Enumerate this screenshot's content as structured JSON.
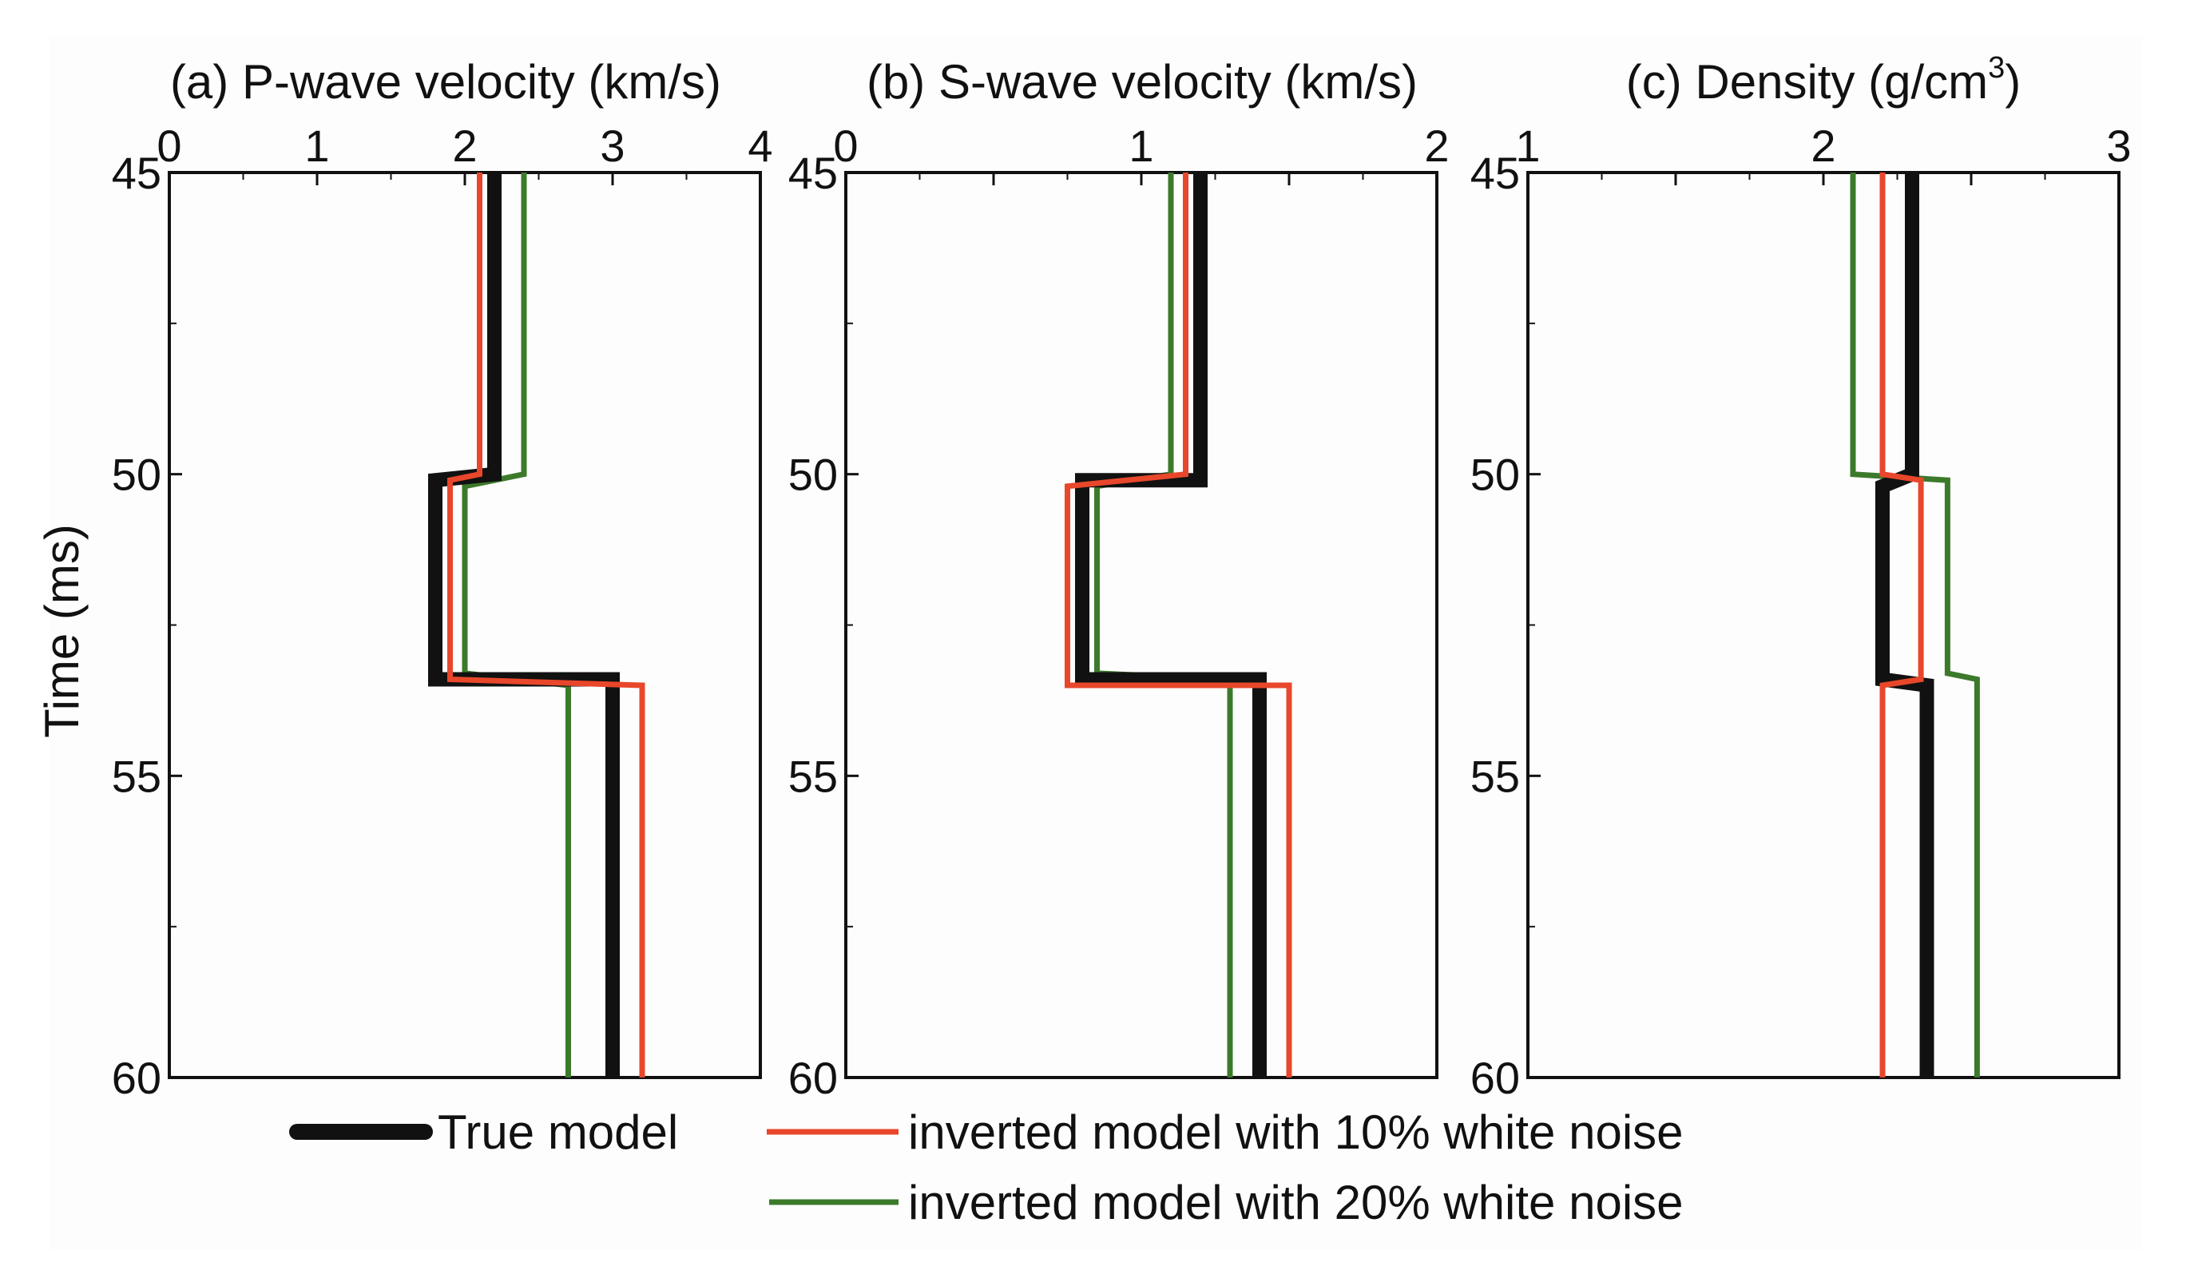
{
  "colors": {
    "true_model": "#111111",
    "noise10": "#e8472b",
    "noise20": "#3c7a2b",
    "background": "#fdfdfd"
  },
  "chart_data": [
    {
      "type": "line",
      "title_prefix": "(a) P-wave velocity (km/s)",
      "title_sup": "",
      "title_suffix": "",
      "ylabel": "Time (ms)",
      "xlim": [
        0,
        4
      ],
      "ylim": [
        45,
        60
      ],
      "x_ticks": [
        "0",
        "1",
        "2",
        "3",
        "4"
      ],
      "y_ticks": [
        "45",
        "50",
        "55",
        "60"
      ],
      "series": [
        {
          "name": "True model",
          "key": "true_model",
          "points": [
            [
              2.2,
              45
            ],
            [
              2.2,
              50
            ],
            [
              1.8,
              50.1
            ],
            [
              1.8,
              53.4
            ],
            [
              3.0,
              53.4
            ],
            [
              3.0,
              60
            ]
          ]
        },
        {
          "name": "inverted model with 10% white noise",
          "key": "noise10",
          "points": [
            [
              2.1,
              45
            ],
            [
              2.1,
              50
            ],
            [
              1.9,
              50.1
            ],
            [
              1.9,
              53.4
            ],
            [
              3.2,
              53.5
            ],
            [
              3.2,
              60
            ]
          ]
        },
        {
          "name": "inverted model with 20% white noise",
          "key": "noise20",
          "points": [
            [
              2.4,
              45
            ],
            [
              2.4,
              50
            ],
            [
              2.0,
              50.2
            ],
            [
              2.0,
              53.3
            ],
            [
              2.7,
              53.5
            ],
            [
              2.7,
              60
            ]
          ]
        }
      ]
    },
    {
      "type": "line",
      "title_prefix": "(b) S-wave velocity (km/s)",
      "title_sup": "",
      "title_suffix": "",
      "ylabel": "",
      "xlim": [
        0,
        2
      ],
      "ylim": [
        45,
        60
      ],
      "x_ticks": [
        "0",
        "",
        "1",
        "",
        "2"
      ],
      "y_ticks": [
        "45",
        "50",
        "55",
        "60"
      ],
      "series": [
        {
          "name": "True model",
          "key": "true_model",
          "points": [
            [
              1.2,
              45
            ],
            [
              1.2,
              50.1
            ],
            [
              0.8,
              50.1
            ],
            [
              0.8,
              53.4
            ],
            [
              1.4,
              53.4
            ],
            [
              1.4,
              60
            ]
          ]
        },
        {
          "name": "inverted model with 10% white noise",
          "key": "noise10",
          "points": [
            [
              1.15,
              45
            ],
            [
              1.15,
              50
            ],
            [
              0.75,
              50.2
            ],
            [
              0.75,
              53.5
            ],
            [
              1.5,
              53.5
            ],
            [
              1.5,
              60
            ]
          ]
        },
        {
          "name": "inverted model with 20% white noise",
          "key": "noise20",
          "points": [
            [
              1.1,
              45
            ],
            [
              1.1,
              50
            ],
            [
              0.85,
              50.2
            ],
            [
              0.85,
              53.3
            ],
            [
              1.3,
              53.4
            ],
            [
              1.3,
              60
            ]
          ]
        }
      ]
    },
    {
      "type": "line",
      "title_prefix": "(c) Density (g/cm",
      "title_sup": "3",
      "title_suffix": ")",
      "ylabel": "",
      "xlim": [
        1,
        3
      ],
      "ylim": [
        45,
        60
      ],
      "x_ticks": [
        "1",
        "",
        "2",
        "",
        "3"
      ],
      "y_ticks": [
        "45",
        "50",
        "55",
        "60"
      ],
      "series": [
        {
          "name": "True model",
          "key": "true_model",
          "points": [
            [
              2.3,
              45
            ],
            [
              2.3,
              50
            ],
            [
              2.2,
              50.2
            ],
            [
              2.2,
              53.4
            ],
            [
              2.35,
              53.5
            ],
            [
              2.35,
              60
            ]
          ]
        },
        {
          "name": "inverted model with 10% white noise",
          "key": "noise10",
          "points": [
            [
              2.2,
              45
            ],
            [
              2.2,
              50
            ],
            [
              2.33,
              50.1
            ],
            [
              2.33,
              53.4
            ],
            [
              2.2,
              53.5
            ],
            [
              2.2,
              60
            ]
          ]
        },
        {
          "name": "inverted model with 20% white noise",
          "key": "noise20",
          "points": [
            [
              2.1,
              45
            ],
            [
              2.1,
              50
            ],
            [
              2.42,
              50.1
            ],
            [
              2.42,
              53.3
            ],
            [
              2.52,
              53.4
            ],
            [
              2.52,
              60
            ]
          ]
        }
      ]
    }
  ],
  "legend": {
    "entries": [
      {
        "label": "True model",
        "key": "true_model"
      },
      {
        "label": "inverted model with 10% white noise",
        "key": "noise10"
      },
      {
        "label": "inverted model with 20% white noise",
        "key": "noise20"
      }
    ]
  }
}
